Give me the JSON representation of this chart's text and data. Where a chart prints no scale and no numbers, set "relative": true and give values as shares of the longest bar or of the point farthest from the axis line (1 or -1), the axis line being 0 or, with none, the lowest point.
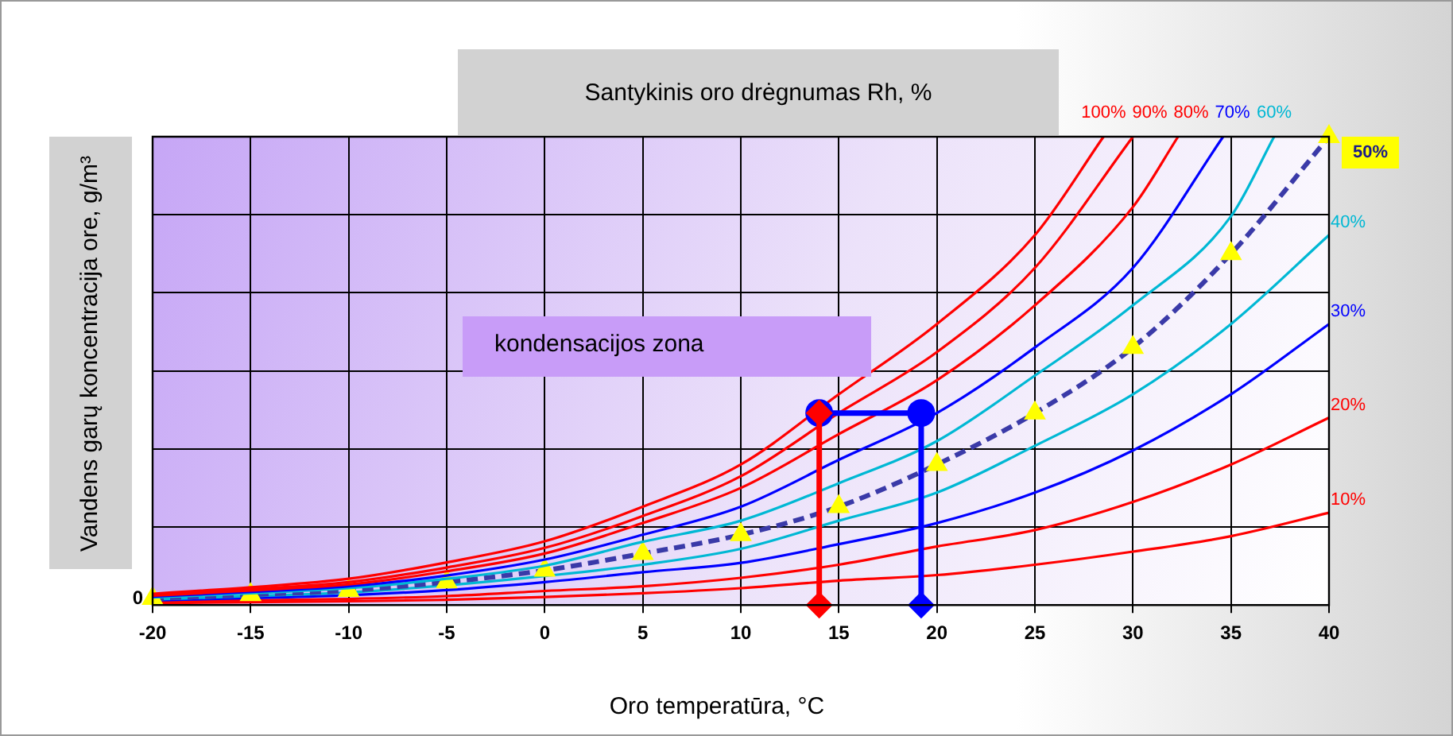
{
  "chart_data": {
    "type": "line",
    "title": "Santykinis oro drėgnumas Rh, %",
    "xlabel": "Oro temperatūra, °C",
    "ylabel": "Vandens garų koncentracija ore, g/m³",
    "relative": true,
    "xlim": [
      -20,
      40
    ],
    "xticks": [
      -20,
      -15,
      -10,
      -5,
      0,
      5,
      10,
      15,
      20,
      25,
      30,
      35,
      40
    ],
    "grid": true,
    "legend": false,
    "annotations": [
      "kondensacijos zona",
      {
        "text": "0",
        "x": -20,
        "y": 0
      }
    ],
    "series": [
      {
        "name": "100%",
        "color": "#ff0000",
        "x": [
          -20,
          -15,
          -10,
          -5,
          0,
          5,
          10,
          15,
          20,
          25,
          28.5
        ],
        "values": [
          0.024,
          0.038,
          0.056,
          0.091,
          0.136,
          0.21,
          0.3,
          0.45,
          0.6,
          0.79,
          1
        ]
      },
      {
        "name": "90%",
        "color": "#ff0000",
        "x": [
          -20,
          -15,
          -10,
          -5,
          0,
          5,
          10,
          15,
          20,
          25,
          30
        ],
        "values": [
          0.022,
          0.034,
          0.049,
          0.08,
          0.122,
          0.19,
          0.275,
          0.41,
          0.54,
          0.72,
          1
        ]
      },
      {
        "name": "80%",
        "color": "#ff0000",
        "x": [
          -20,
          -15,
          -10,
          -5,
          0,
          5,
          10,
          15,
          20,
          25,
          30,
          32.3
        ],
        "values": [
          0.02,
          0.031,
          0.044,
          0.072,
          0.11,
          0.175,
          0.25,
          0.365,
          0.48,
          0.64,
          0.85,
          1
        ]
      },
      {
        "name": "70%",
        "color": "#0000ff",
        "x": [
          -20,
          -15,
          -10,
          -5,
          0,
          5,
          10,
          15,
          20,
          25,
          30,
          34.6
        ],
        "values": [
          0.018,
          0.028,
          0.04,
          0.063,
          0.097,
          0.15,
          0.21,
          0.31,
          0.41,
          0.55,
          0.72,
          1
        ]
      },
      {
        "name": "60%",
        "color": "#00b8d4",
        "x": [
          -20,
          -15,
          -10,
          -5,
          0,
          5,
          10,
          15,
          20,
          25,
          30,
          35,
          37.2
        ],
        "values": [
          0.016,
          0.025,
          0.036,
          0.056,
          0.084,
          0.135,
          0.18,
          0.26,
          0.35,
          0.49,
          0.64,
          0.83,
          1
        ]
      },
      {
        "name": "50%",
        "color": "#ffff00",
        "marker": "triangle",
        "line_style": "dashed",
        "x": [
          -20,
          -15,
          -10,
          -5,
          0,
          5,
          10,
          15,
          20,
          25,
          30,
          35,
          40
        ],
        "values": [
          0.014,
          0.022,
          0.031,
          0.049,
          0.074,
          0.11,
          0.15,
          0.21,
          0.3,
          0.41,
          0.55,
          0.75,
          1
        ]
      },
      {
        "name": "40%",
        "color": "#00b8d4",
        "x": [
          -20,
          -15,
          -10,
          -5,
          0,
          5,
          10,
          15,
          20,
          25,
          30,
          35,
          40
        ],
        "values": [
          0.012,
          0.019,
          0.027,
          0.042,
          0.062,
          0.086,
          0.12,
          0.18,
          0.24,
          0.34,
          0.45,
          0.6,
          0.79
        ]
      },
      {
        "name": "30%",
        "color": "#0000ff",
        "x": [
          -20,
          -15,
          -10,
          -5,
          0,
          5,
          10,
          15,
          20,
          25,
          30,
          35,
          40
        ],
        "values": [
          0.01,
          0.015,
          0.021,
          0.032,
          0.049,
          0.07,
          0.09,
          0.13,
          0.175,
          0.24,
          0.33,
          0.45,
          0.6
        ]
      },
      {
        "name": "20%",
        "color": "#ff0000",
        "x": [
          -20,
          -15,
          -10,
          -5,
          0,
          5,
          10,
          15,
          20,
          25,
          30,
          35,
          40
        ],
        "values": [
          0.007,
          0.01,
          0.013,
          0.019,
          0.03,
          0.04,
          0.058,
          0.086,
          0.125,
          0.16,
          0.22,
          0.3,
          0.4
        ]
      },
      {
        "name": "10%",
        "color": "#ff0000",
        "x": [
          -20,
          -15,
          -10,
          -5,
          0,
          5,
          10,
          15,
          20,
          25,
          30,
          35,
          40
        ],
        "values": [
          0.004,
          0.006,
          0.008,
          0.011,
          0.017,
          0.025,
          0.036,
          0.052,
          0.064,
          0.086,
          0.114,
          0.147,
          0.197
        ]
      },
      {
        "color": "#ff0000",
        "marker": "diamond",
        "x": [
          14,
          14
        ],
        "values": [
          0,
          0.41
        ]
      },
      {
        "color": "#0000ff",
        "marker": "diamond",
        "x": [
          19.2,
          19.2
        ],
        "values": [
          0,
          0.41
        ]
      },
      {
        "color": "#0000ff",
        "marker": "circle",
        "x": [
          14,
          19.2
        ],
        "values": [
          0.41,
          0.41
        ]
      }
    ]
  }
}
